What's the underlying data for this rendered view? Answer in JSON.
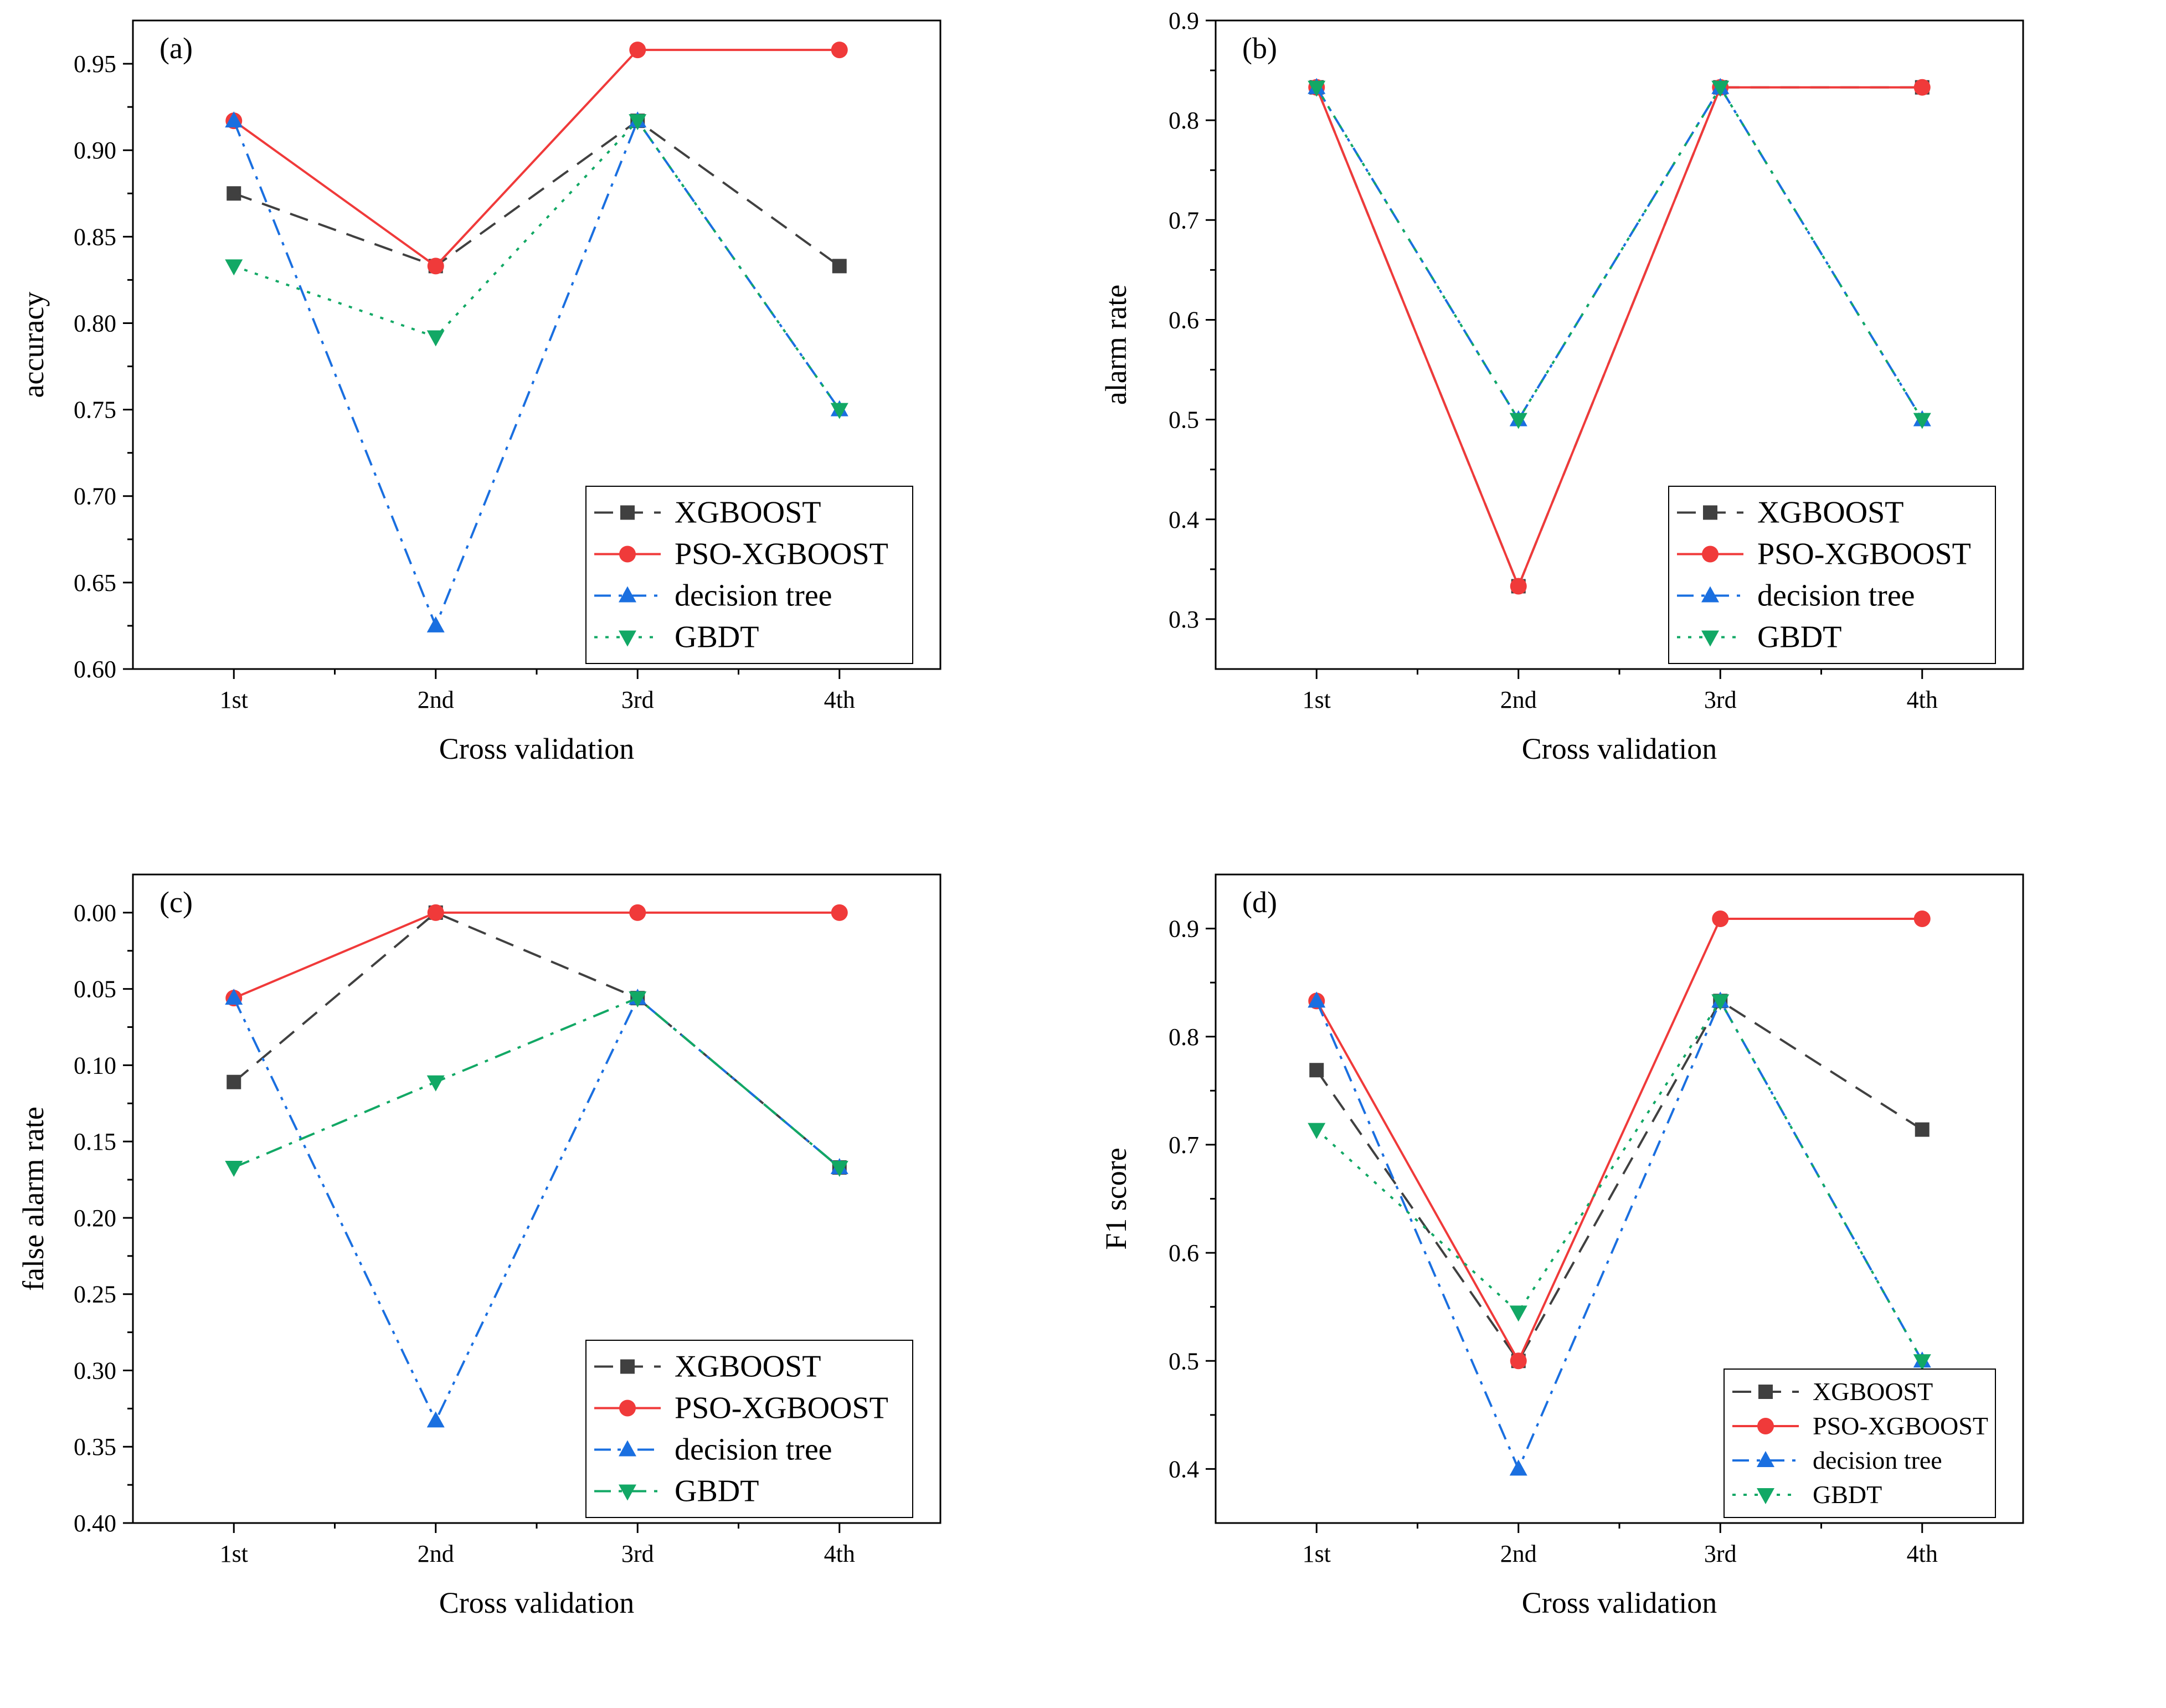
{
  "figure": {
    "xlabel": "Cross validation",
    "categories": [
      "1st",
      "2nd",
      "3rd",
      "4th"
    ]
  },
  "styles": {
    "XGBOOST": {
      "color": "#404040",
      "marker": "square",
      "dash": "dash"
    },
    "PSO-XGBOOST": {
      "color": "#f03a3a",
      "marker": "circle",
      "dash": "solid"
    },
    "decision tree": {
      "color": "#1a6fe0",
      "marker": "triangle-up",
      "dash": "dashdot"
    },
    "GBDT": {
      "color": "#12a865",
      "marker": "triangle-down",
      "dash": "dot"
    }
  },
  "chart_data": [
    {
      "type": "line",
      "panel_label": "(a)",
      "ylabel": "accuracy",
      "xlabel": "Cross validation",
      "categories": [
        "1st",
        "2nd",
        "3rd",
        "4th"
      ],
      "ylim": [
        0.6,
        0.975
      ],
      "yticks": [
        0.6,
        0.65,
        0.7,
        0.75,
        0.8,
        0.85,
        0.9,
        0.95
      ],
      "ytick_labels": [
        "0.60",
        "0.65",
        "0.70",
        "0.75",
        "0.80",
        "0.85",
        "0.90",
        "0.95"
      ],
      "inverted": false,
      "legend_position": "bottom-right",
      "series": [
        {
          "name": "XGBOOST",
          "values": [
            0.875,
            0.833,
            0.917,
            0.833
          ]
        },
        {
          "name": "PSO-XGBOOST",
          "values": [
            0.917,
            0.833,
            0.958,
            0.958
          ]
        },
        {
          "name": "decision tree",
          "values": [
            0.917,
            0.625,
            0.917,
            0.75
          ]
        },
        {
          "name": "GBDT",
          "values": [
            0.833,
            0.792,
            0.917,
            0.75
          ],
          "dash": "dot"
        }
      ]
    },
    {
      "type": "line",
      "panel_label": "(b)",
      "ylabel": "alarm rate",
      "xlabel": "Cross validation",
      "categories": [
        "1st",
        "2nd",
        "3rd",
        "4th"
      ],
      "ylim": [
        0.25,
        0.9
      ],
      "yticks": [
        0.3,
        0.4,
        0.5,
        0.6,
        0.7,
        0.8,
        0.9
      ],
      "ytick_labels": [
        "0.3",
        "0.4",
        "0.5",
        "0.6",
        "0.7",
        "0.8",
        "0.9"
      ],
      "inverted": false,
      "legend_position": "bottom-right",
      "series": [
        {
          "name": "XGBOOST",
          "values": [
            0.833,
            0.333,
            0.833,
            0.833
          ]
        },
        {
          "name": "PSO-XGBOOST",
          "values": [
            0.833,
            0.333,
            0.833,
            0.833
          ]
        },
        {
          "name": "decision tree",
          "values": [
            0.833,
            0.5,
            0.833,
            0.5
          ]
        },
        {
          "name": "GBDT",
          "values": [
            0.833,
            0.5,
            0.833,
            0.5
          ],
          "dash": "dot"
        }
      ]
    },
    {
      "type": "line",
      "panel_label": "(c)",
      "ylabel": "false alarm rate",
      "xlabel": "Cross validation",
      "categories": [
        "1st",
        "2nd",
        "3rd",
        "4th"
      ],
      "ylim": [
        -0.025,
        0.4
      ],
      "yticks": [
        0.0,
        0.05,
        0.1,
        0.15,
        0.2,
        0.25,
        0.3,
        0.35,
        0.4
      ],
      "ytick_labels": [
        "0.00",
        "0.05",
        "0.10",
        "0.15",
        "0.20",
        "0.25",
        "0.30",
        "0.35",
        "0.40"
      ],
      "inverted": true,
      "legend_position": "bottom-right",
      "series": [
        {
          "name": "XGBOOST",
          "values": [
            0.111,
            0.0,
            0.056,
            0.167
          ]
        },
        {
          "name": "PSO-XGBOOST",
          "values": [
            0.056,
            0.0,
            0.0,
            0.0
          ]
        },
        {
          "name": "decision tree",
          "values": [
            0.056,
            0.333,
            0.056,
            0.167
          ],
          "dash": "dashdotdot"
        },
        {
          "name": "GBDT",
          "values": [
            0.167,
            0.111,
            0.056,
            0.167
          ],
          "dash": "dashdot"
        }
      ]
    },
    {
      "type": "line",
      "panel_label": "(d)",
      "ylabel": "F1 score",
      "xlabel": "Cross validation",
      "categories": [
        "1st",
        "2nd",
        "3rd",
        "4th"
      ],
      "ylim": [
        0.35,
        0.95
      ],
      "yticks": [
        0.4,
        0.5,
        0.6,
        0.7,
        0.8,
        0.9
      ],
      "ytick_labels": [
        "0.4",
        "0.5",
        "0.6",
        "0.7",
        "0.8",
        "0.9"
      ],
      "inverted": false,
      "legend_position": "bottom-right",
      "series": [
        {
          "name": "XGBOOST",
          "values": [
            0.769,
            0.5,
            0.833,
            0.714
          ]
        },
        {
          "name": "PSO-XGBOOST",
          "values": [
            0.833,
            0.5,
            0.909,
            0.909
          ]
        },
        {
          "name": "decision tree",
          "values": [
            0.833,
            0.4,
            0.833,
            0.5
          ]
        },
        {
          "name": "GBDT",
          "values": [
            0.714,
            0.545,
            0.833,
            0.5
          ],
          "dash": "dot"
        }
      ]
    }
  ]
}
